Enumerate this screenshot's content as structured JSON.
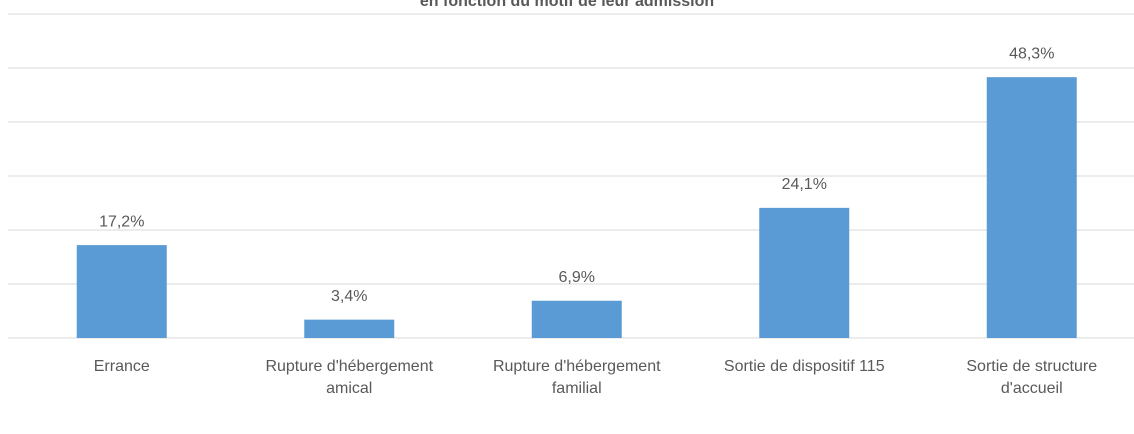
{
  "chart_data": {
    "type": "bar",
    "title": "en fonction du motif de leur admission",
    "categories": [
      "Errance",
      "Rupture d'hébergement amical",
      "Rupture d'hébergement familial",
      "Sortie de dispositif 115",
      "Sortie de structure d'accueil"
    ],
    "values": [
      17.2,
      3.4,
      6.9,
      24.1,
      48.3
    ],
    "value_labels": [
      "17,2%",
      "3,4%",
      "6,9%",
      "24,1%",
      "48,3%"
    ],
    "color": "#5b9bd5",
    "ylim": [
      0,
      60
    ],
    "yticks": [
      0,
      10,
      20,
      30,
      40,
      50,
      60
    ],
    "grid": true
  }
}
